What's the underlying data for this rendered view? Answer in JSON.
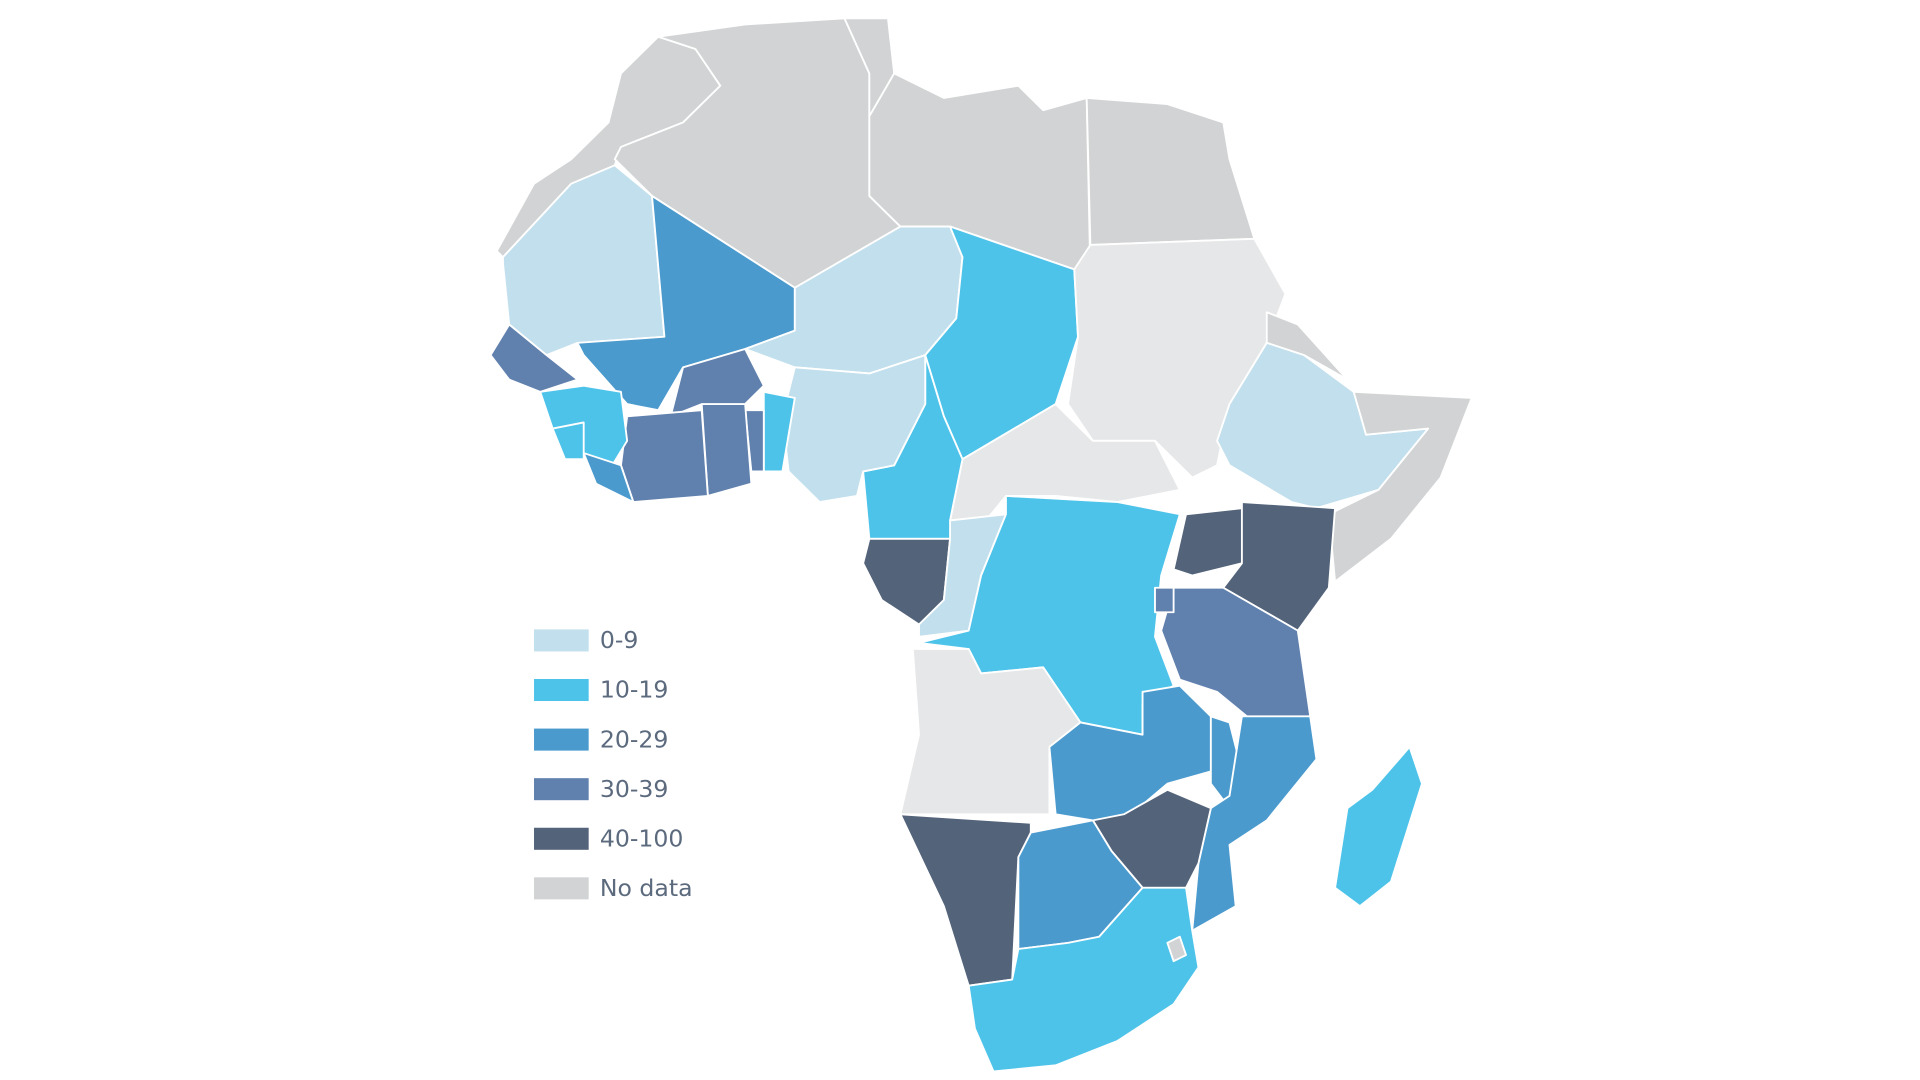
{
  "legend": {
    "items": [
      {
        "label": "0-9",
        "color": "#c2dfed"
      },
      {
        "label": "10-19",
        "color": "#4ec3ea"
      },
      {
        "label": "20-29",
        "color": "#4b9ace"
      },
      {
        "label": "30-39",
        "color": "#6080ae"
      },
      {
        "label": "40-100",
        "color": "#53637a"
      },
      {
        "label": "No data",
        "color": "#d1d3d4"
      }
    ]
  }
}
